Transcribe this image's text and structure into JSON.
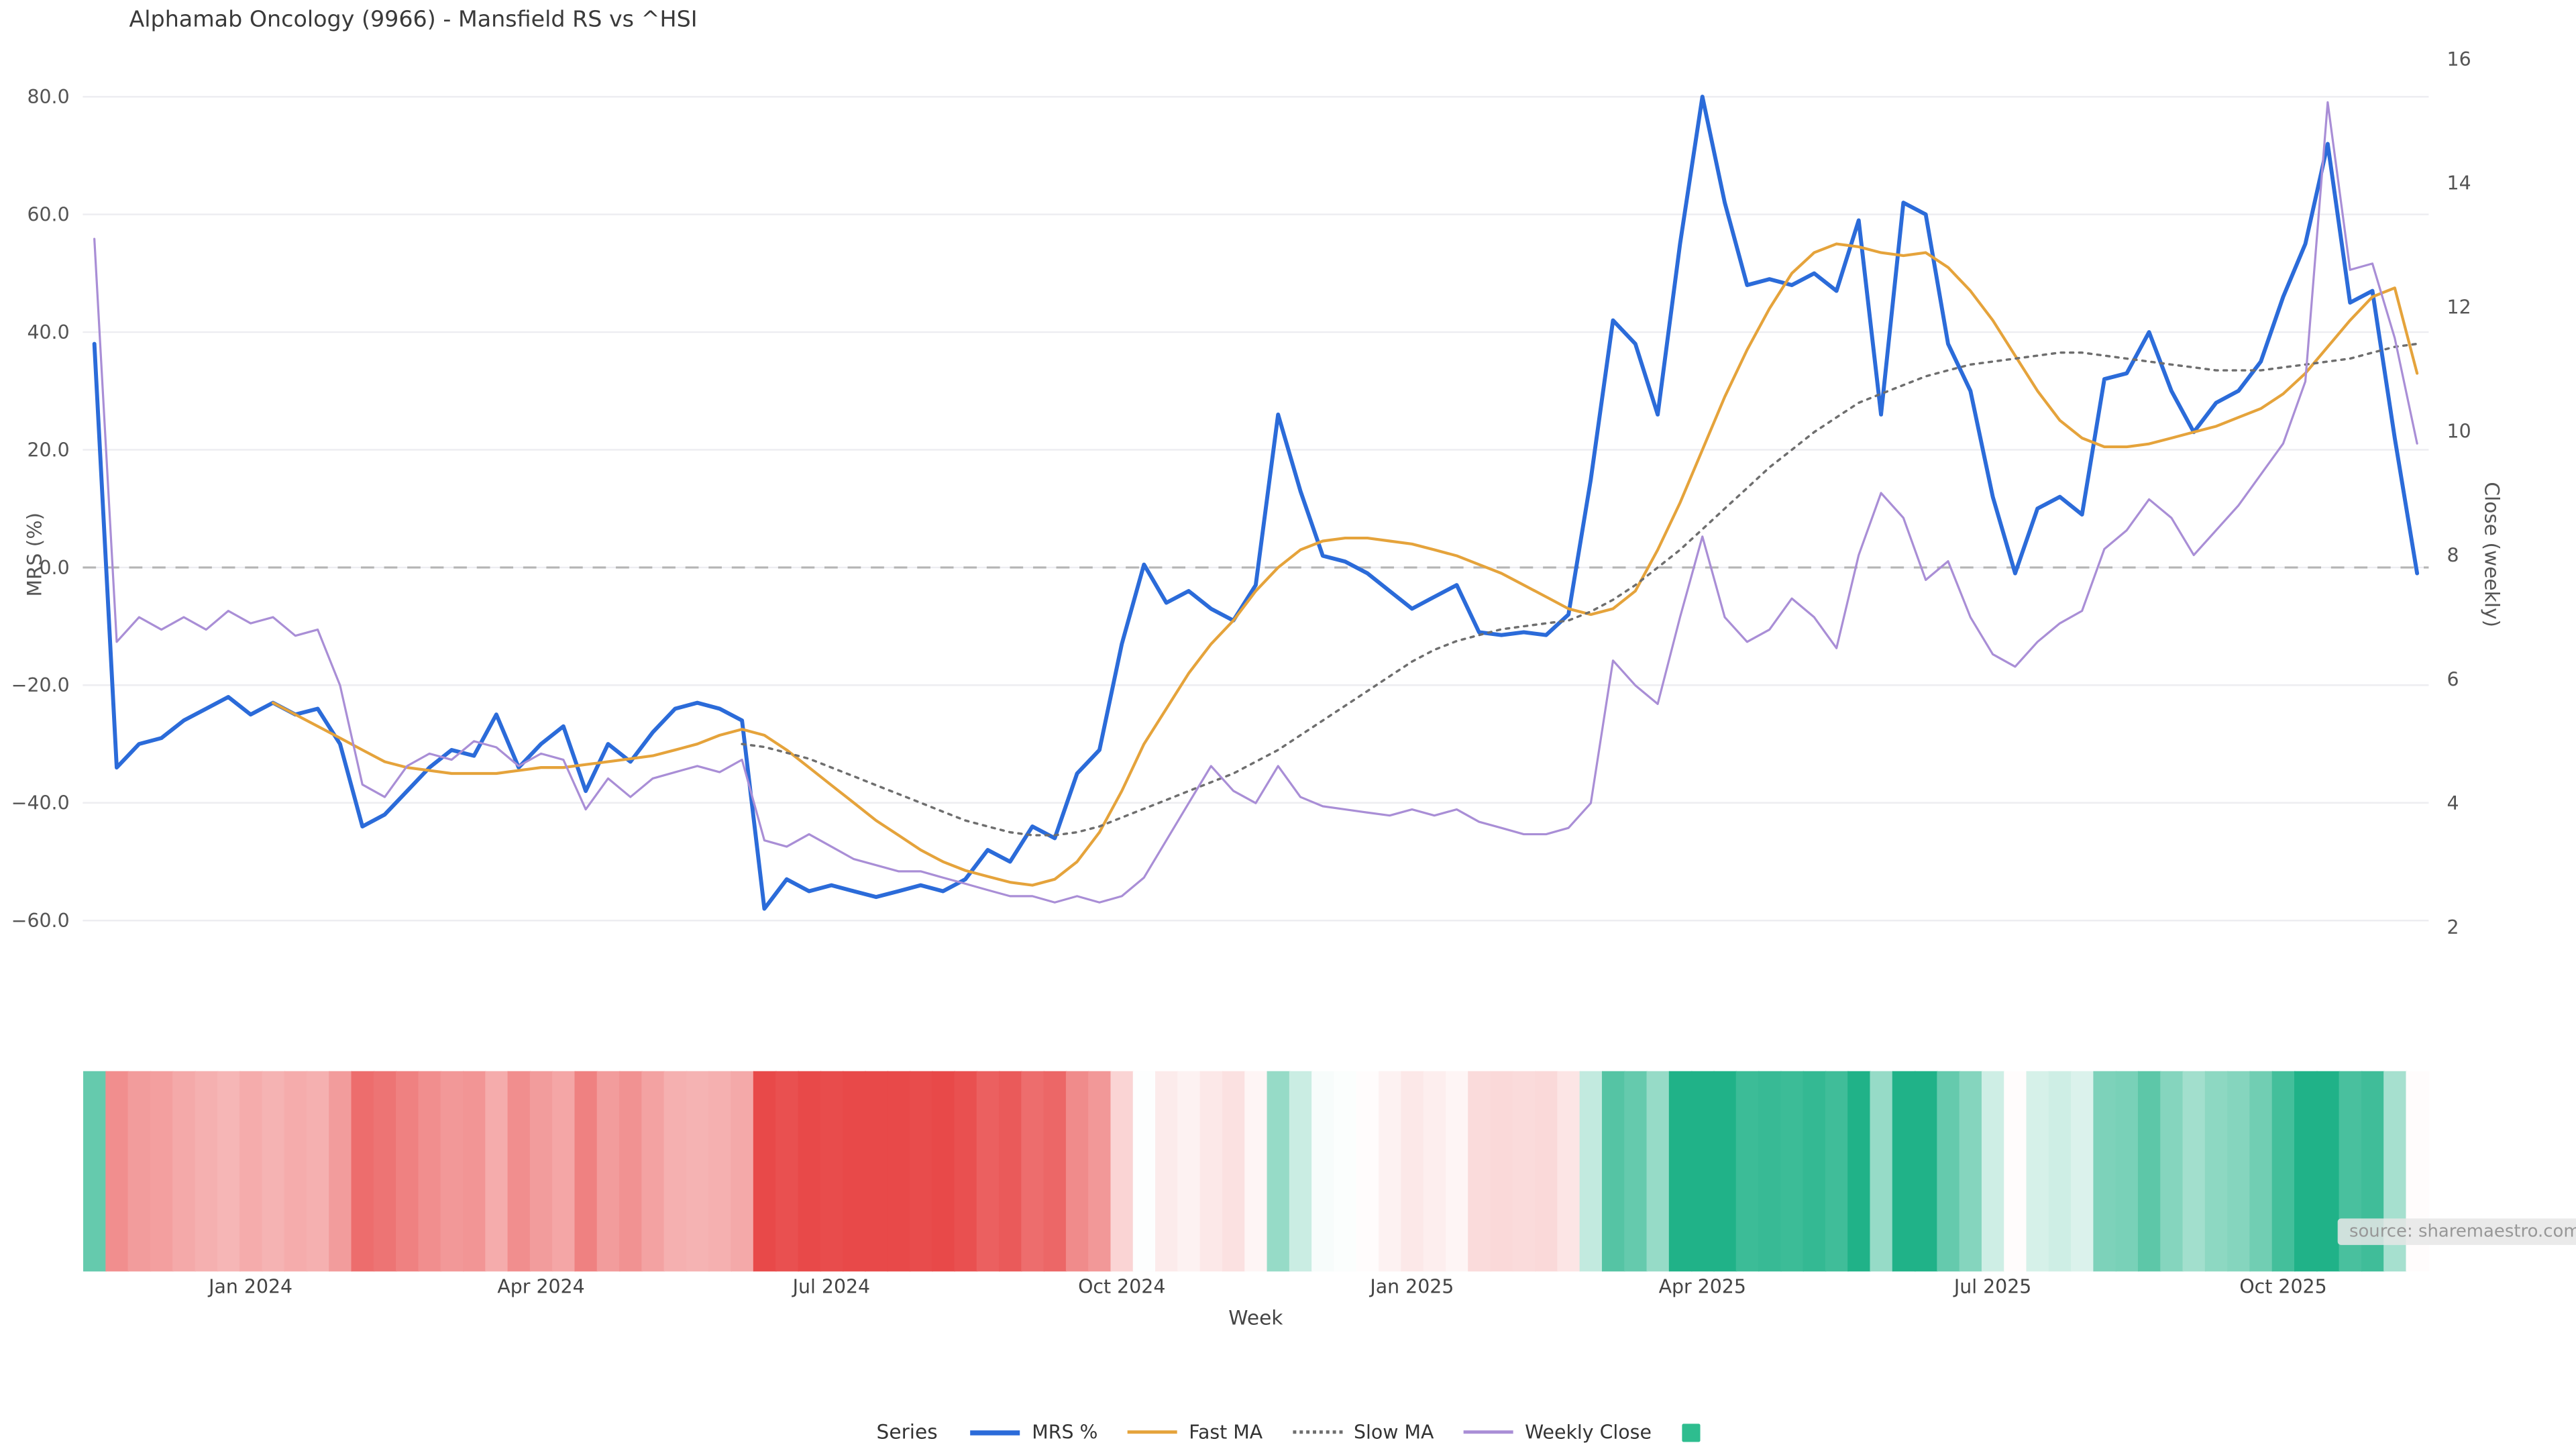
{
  "chart_data": {
    "type": "line",
    "title": "Alphamab Oncology (9966) - Mansfield RS vs ^HSI",
    "legend_label": "Series",
    "source": "source: sharemaestro.com",
    "grid": true,
    "legend_position": "bottom-center",
    "axes": {
      "left": {
        "label": "MRS (%)",
        "range": [
          -78,
          88
        ],
        "ticks": [
          {
            "v": 80,
            "label": "80.0"
          },
          {
            "v": 60,
            "label": "60.0"
          },
          {
            "v": 40,
            "label": "40.0"
          },
          {
            "v": 20,
            "label": "20.0"
          },
          {
            "v": 0,
            "label": "0.0"
          },
          {
            "v": -20,
            "label": "−20.0"
          },
          {
            "v": -40,
            "label": "−40.0"
          },
          {
            "v": -60,
            "label": "−60.0"
          }
        ]
      },
      "right": {
        "label": "Close (weekly)",
        "range": [
          0.4,
          16.15
        ],
        "ticks": [
          {
            "v": 16,
            "label": "16"
          },
          {
            "v": 14,
            "label": "14"
          },
          {
            "v": 12,
            "label": "12"
          },
          {
            "v": 10,
            "label": "10"
          },
          {
            "v": 8,
            "label": "8"
          },
          {
            "v": 6,
            "label": "6"
          },
          {
            "v": 4,
            "label": "4"
          },
          {
            "v": 2,
            "label": "2"
          }
        ]
      },
      "x": {
        "label": "Week",
        "ticks": [
          {
            "i": 7,
            "label": "Jan 2024"
          },
          {
            "i": 20,
            "label": "Apr 2024"
          },
          {
            "i": 33,
            "label": "Jul 2024"
          },
          {
            "i": 46,
            "label": "Oct 2024"
          },
          {
            "i": 59,
            "label": "Jan 2025"
          },
          {
            "i": 72,
            "label": "Apr 2025"
          },
          {
            "i": 85,
            "label": "Jul 2025"
          },
          {
            "i": 98,
            "label": "Oct 2025"
          }
        ]
      }
    },
    "zero_line": {
      "axis": "left",
      "value": 0,
      "color": "#b5b5b5",
      "style": "dashed"
    },
    "heatmap": {
      "basis": "MRS %",
      "positive_color": "#20b288",
      "negative_color": "#e84949",
      "max_abs": 55,
      "legend_color": "#2ebd8f"
    },
    "series": [
      {
        "key": "mrs",
        "name": "MRS %",
        "axis": "left",
        "style": "solid",
        "color": "#2b6bd9",
        "width": 2.4,
        "values": [
          38,
          -34,
          -30,
          -29,
          -26,
          -24,
          -22,
          -25,
          -23,
          -25,
          -24,
          -30,
          -44,
          -42,
          -38,
          -34,
          -31,
          -32,
          -25,
          -34,
          -30,
          -27,
          -38,
          -30,
          -33,
          -28,
          -24,
          -23,
          -24,
          -26,
          -58,
          -53,
          -55,
          -54,
          -55,
          -56,
          -55,
          -54,
          -55,
          -53,
          -48,
          -50,
          -44,
          -46,
          -35,
          -31,
          -13,
          0.5,
          -6,
          -4,
          -7,
          -9,
          -3,
          26,
          13,
          2,
          1,
          -1,
          -4,
          -7,
          -5,
          -3,
          -11,
          -11.5,
          -11,
          -11.5,
          -8,
          15,
          42,
          38,
          26,
          55,
          80,
          62,
          48,
          49,
          48,
          50,
          47,
          59,
          26,
          62,
          60,
          38,
          30,
          12,
          -1,
          10,
          12,
          9,
          32,
          33,
          40,
          30,
          23,
          28,
          30,
          35,
          46,
          55,
          72,
          45,
          47,
          22,
          -1
        ]
      },
      {
        "key": "fast_ma",
        "name": "Fast MA",
        "axis": "left",
        "style": "solid",
        "color": "#e5a33b",
        "width": 1.7,
        "values": [
          null,
          null,
          null,
          null,
          null,
          null,
          null,
          null,
          -23,
          -25,
          -27,
          -29,
          -31,
          -33,
          -34,
          -34.5,
          -35,
          -35,
          -35,
          -34.5,
          -34,
          -34,
          -33.5,
          -33,
          -32.5,
          -32,
          -31,
          -30,
          -28.5,
          -27.5,
          -28.5,
          -31,
          -34,
          -37,
          -40,
          -43,
          -45.5,
          -48,
          -50,
          -51.5,
          -52.5,
          -53.5,
          -54,
          -53,
          -50,
          -45,
          -38,
          -30,
          -24,
          -18,
          -13,
          -9,
          -4,
          0,
          3,
          4.5,
          5,
          5,
          4.5,
          4,
          3,
          2,
          0.5,
          -1,
          -3,
          -5,
          -7,
          -8,
          -7,
          -4,
          3,
          11,
          20,
          29,
          37,
          44,
          50,
          53.5,
          55,
          54.5,
          53.5,
          53,
          53.5,
          51,
          47,
          42,
          36,
          30,
          25,
          22,
          20.5,
          20.5,
          21,
          22,
          23,
          24,
          25.5,
          27,
          29.5,
          33,
          37.5,
          42,
          46,
          47.5,
          33
        ]
      },
      {
        "key": "slow_ma",
        "name": "Slow MA",
        "axis": "left",
        "style": "dotted",
        "color": "#6e6e6e",
        "width": 1.4,
        "values": [
          null,
          null,
          null,
          null,
          null,
          null,
          null,
          null,
          null,
          null,
          null,
          null,
          null,
          null,
          null,
          null,
          null,
          null,
          null,
          null,
          null,
          null,
          null,
          null,
          null,
          null,
          null,
          null,
          null,
          -30,
          -30.5,
          -31.5,
          -32.5,
          -34,
          -35.5,
          -37,
          -38.5,
          -40,
          -41.5,
          -43,
          -44,
          -45,
          -45.5,
          -45.5,
          -45,
          -44,
          -42.5,
          -41,
          -39.5,
          -38,
          -36.5,
          -35,
          -33,
          -31,
          -28.5,
          -26,
          -23.5,
          -21,
          -18.5,
          -16,
          -14,
          -12.5,
          -11.5,
          -10.5,
          -10,
          -9.5,
          -9,
          -7.5,
          -5.5,
          -3,
          0,
          3,
          6.5,
          10,
          13.5,
          17,
          20,
          23,
          25.5,
          28,
          29.5,
          31,
          32.5,
          33.5,
          34.5,
          35,
          35.5,
          36,
          36.5,
          36.5,
          36,
          35.5,
          35,
          34.5,
          34,
          33.5,
          33.5,
          33.5,
          34,
          34.5,
          35,
          35.5,
          36.5,
          37.5,
          38
        ]
      },
      {
        "key": "weekly_close",
        "name": "Weekly Close",
        "axis": "right",
        "style": "solid",
        "color": "#a98ed6",
        "width": 1.3,
        "values": [
          13.1,
          6.6,
          7.0,
          6.8,
          7.0,
          6.8,
          7.1,
          6.9,
          7.0,
          6.7,
          6.8,
          5.9,
          4.3,
          4.1,
          4.6,
          4.8,
          4.7,
          5.0,
          4.9,
          4.6,
          4.8,
          4.7,
          3.9,
          4.4,
          4.1,
          4.4,
          4.5,
          4.6,
          4.5,
          4.7,
          3.4,
          3.3,
          3.5,
          3.3,
          3.1,
          3.0,
          2.9,
          2.9,
          2.8,
          2.7,
          2.6,
          2.5,
          2.5,
          2.4,
          2.5,
          2.4,
          2.5,
          2.8,
          3.4,
          4.0,
          4.6,
          4.2,
          4.0,
          4.6,
          4.1,
          3.95,
          3.9,
          3.85,
          3.8,
          3.9,
          3.8,
          3.9,
          3.7,
          3.6,
          3.5,
          3.5,
          3.6,
          4.0,
          6.3,
          5.9,
          5.6,
          7.0,
          8.3,
          7.0,
          6.6,
          6.8,
          7.3,
          7.0,
          6.5,
          8.0,
          9.0,
          8.6,
          7.6,
          7.9,
          7.0,
          6.4,
          6.2,
          6.6,
          6.9,
          7.1,
          8.1,
          8.4,
          8.9,
          8.6,
          8.0,
          8.4,
          8.8,
          9.3,
          9.8,
          10.8,
          15.3,
          12.6,
          12.7,
          11.5,
          9.8
        ]
      }
    ]
  }
}
